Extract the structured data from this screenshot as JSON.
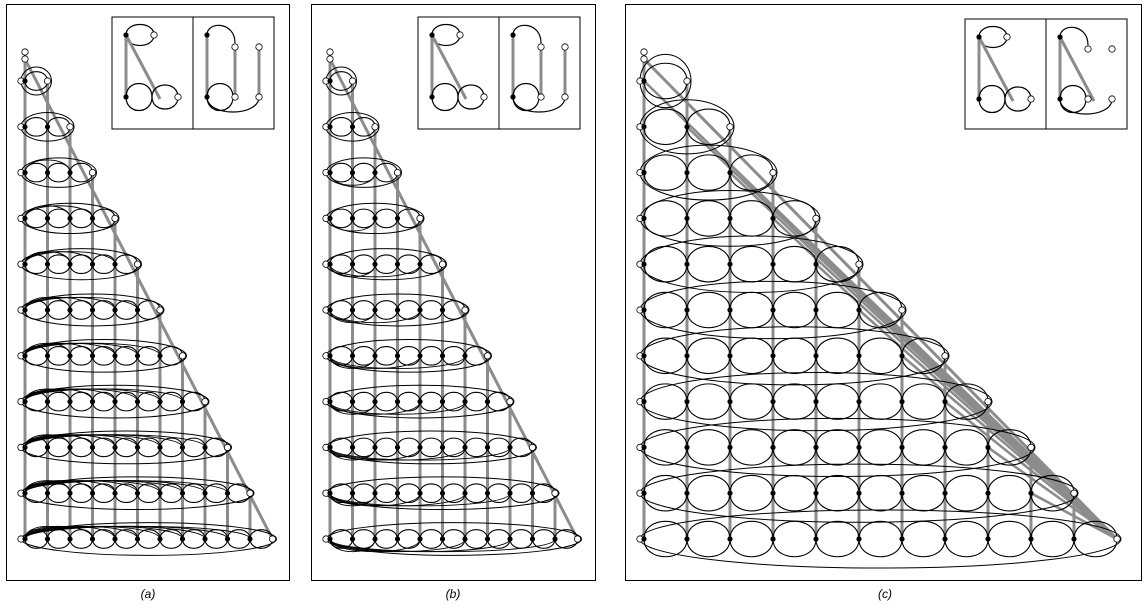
{
  "figure": {
    "panels": [
      {
        "id": "a",
        "caption": "(a)",
        "rows": 11,
        "variant": "nested-arcs"
      },
      {
        "id": "b",
        "caption": "(b)",
        "rows": 11,
        "variant": "alternating-arcs"
      },
      {
        "id": "c",
        "caption": "(c)",
        "rows": 11,
        "variant": "double-rungs"
      }
    ],
    "colors": {
      "rung": "#8c8c8c",
      "stroke": "#000000",
      "node": "#000000",
      "open_node": "#ffffff",
      "background": "#ffffff"
    }
  }
}
